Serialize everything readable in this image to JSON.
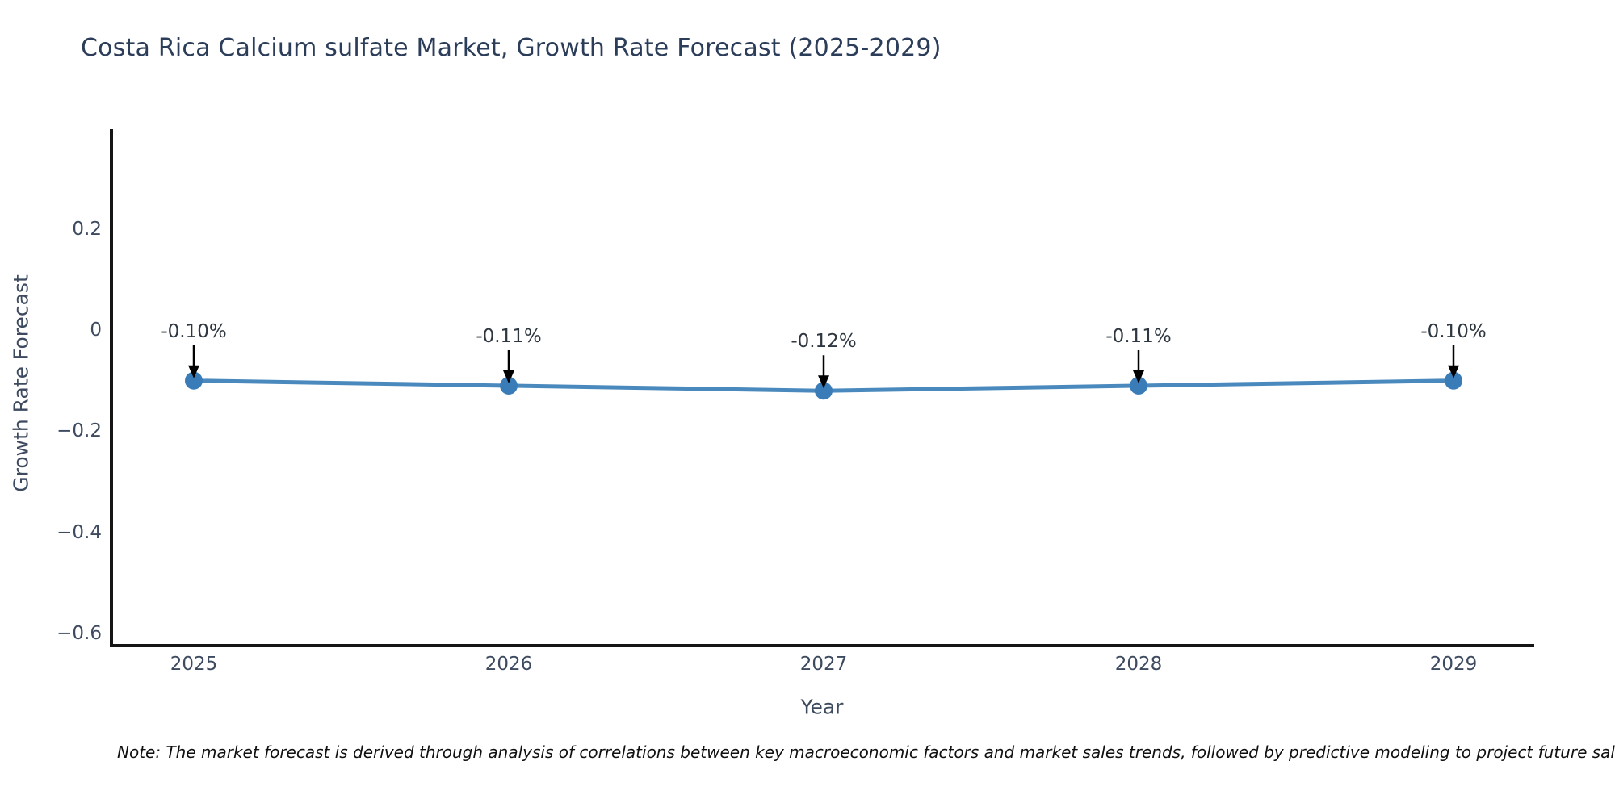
{
  "title": "Costa Rica Calcium sulfate Market, Growth Rate Forecast (2025-2029)",
  "note": "Note: The market forecast is derived through analysis of correlations between key macroeconomic factors and market sales trends, followed by predictive modeling to project future sales.",
  "chart_data": {
    "type": "line",
    "x": [
      2025,
      2026,
      2027,
      2028,
      2029
    ],
    "values": [
      -0.1,
      -0.11,
      -0.12,
      -0.11,
      -0.1
    ],
    "point_labels": [
      "-0.10%",
      "-0.11%",
      "-0.12%",
      "-0.11%",
      "-0.10%"
    ],
    "x_tick_labels": [
      "2025",
      "2026",
      "2027",
      "2028",
      "2029"
    ],
    "y_ticks": [
      0.2,
      0,
      -0.2,
      -0.4,
      -0.6
    ],
    "y_tick_labels": [
      "0.2",
      "0",
      "−0.2",
      "−0.4",
      "−0.6"
    ],
    "title": "Costa Rica Calcium sulfate Market, Growth Rate Forecast (2025-2029)",
    "xlabel": "Year",
    "ylabel": "Growth Rate Forecast",
    "ylim": [
      -0.62,
      0.4
    ],
    "grid": false,
    "legend": "none",
    "annotation_style": "down-arrow",
    "colors": {
      "line": "#4a89bd",
      "marker": "#3a7cb8",
      "arrow": "#000000",
      "axis": "#151515",
      "tick_text": "#3d4a5f",
      "title_text": "#2b3d59",
      "annotation_text": "#2e3740",
      "note_text": "#101010",
      "background": "#ffffff"
    }
  }
}
